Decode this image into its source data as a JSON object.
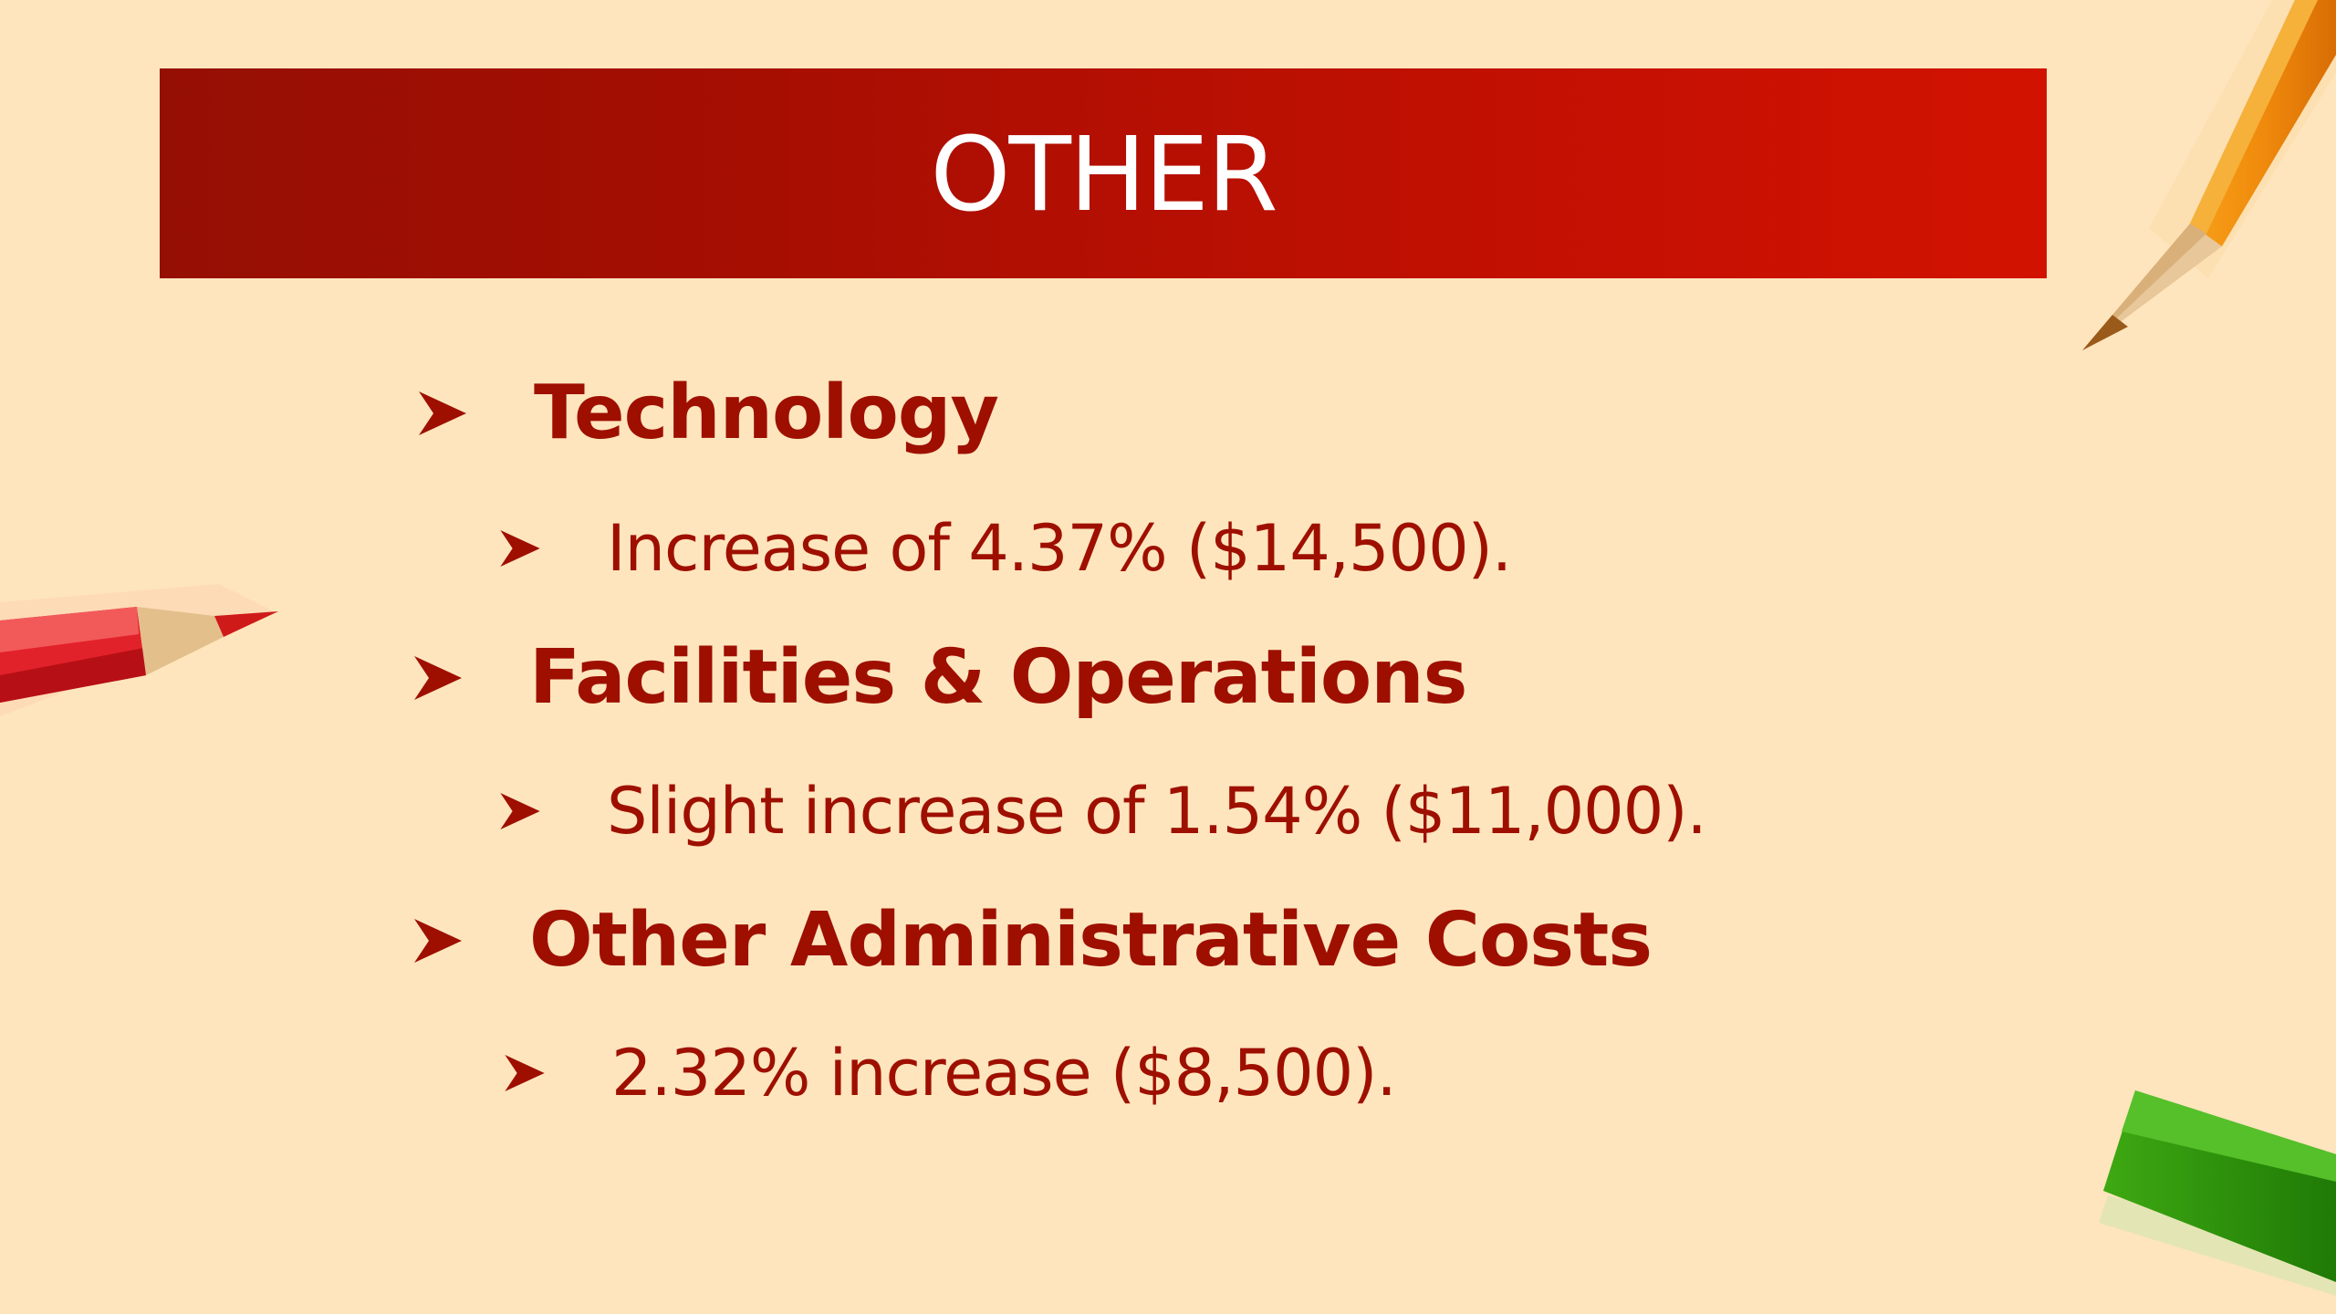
{
  "slide": {
    "title": "OTHER",
    "accent_color": "#a50e02",
    "text_color": "#9e0f00",
    "background_color": "#fee5bd",
    "sections": [
      {
        "heading": "Technology",
        "detail": "Increase of 4.37% ($14,500)."
      },
      {
        "heading": "Facilities & Operations",
        "detail": "Slight increase of 1.54% ($11,000)."
      },
      {
        "heading": "Other Administrative Costs",
        "detail": "2.32% increase ($8,500)."
      }
    ]
  },
  "decorations": {
    "top_right": "orange-pencil-icon",
    "left": "red-pencil-icon",
    "bottom_right": "green-pencil-icon"
  }
}
